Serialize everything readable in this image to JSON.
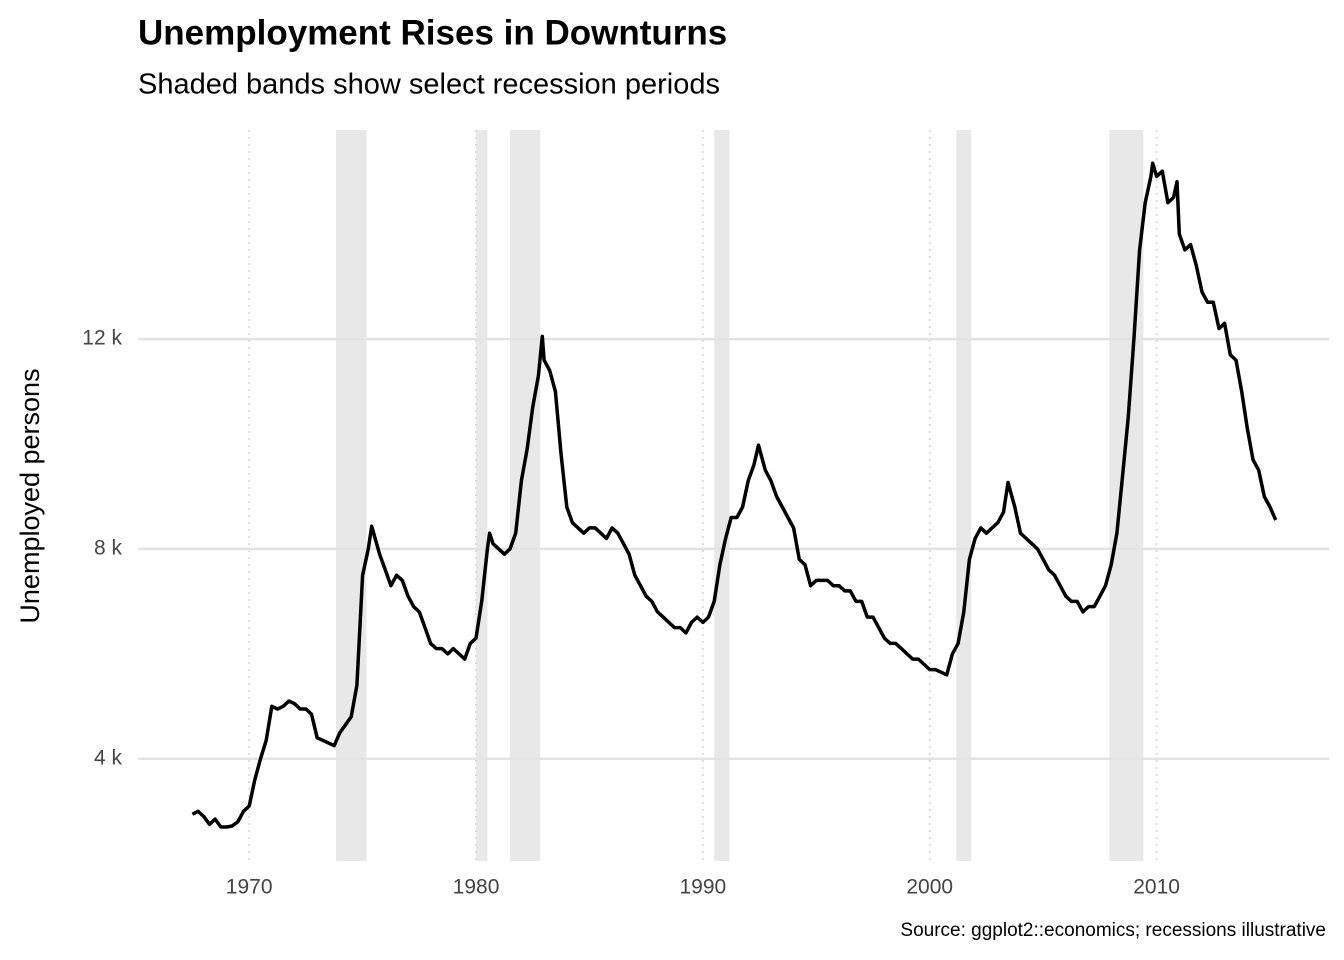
{
  "chart_data": {
    "type": "line",
    "title": "Unemployment Rises in Downturns",
    "subtitle": "Shaded bands show select recession periods",
    "y_label": "Unemployed persons",
    "caption": "Source: ggplot2::economics; recessions illustrative",
    "color": "#000000",
    "recession_color": "#e8e8e8",
    "recessions": [
      [
        1973.83,
        1975.17
      ],
      [
        1980.0,
        1980.5
      ],
      [
        1981.5,
        1982.83
      ],
      [
        1990.5,
        1991.17
      ],
      [
        2001.17,
        2001.83
      ],
      [
        2007.92,
        2009.42
      ]
    ],
    "x": [
      1967.5,
      1967.75,
      1968,
      1968.25,
      1968.5,
      1968.75,
      1969,
      1969.25,
      1969.5,
      1969.75,
      1970,
      1970.25,
      1970.5,
      1970.75,
      1971,
      1971.25,
      1971.5,
      1971.75,
      1972,
      1972.25,
      1972.5,
      1972.75,
      1973,
      1973.25,
      1973.5,
      1973.75,
      1974,
      1974.25,
      1974.5,
      1974.75,
      1975,
      1975.25,
      1975.4,
      1975.75,
      1976,
      1976.25,
      1976.5,
      1976.75,
      1977,
      1977.25,
      1977.5,
      1977.75,
      1978,
      1978.25,
      1978.5,
      1978.75,
      1979,
      1979.25,
      1979.5,
      1979.75,
      1980,
      1980.25,
      1980.5,
      1980.6,
      1980.75,
      1981,
      1981.25,
      1981.5,
      1981.75,
      1982,
      1982.25,
      1982.5,
      1982.75,
      1982.92,
      1983,
      1983.25,
      1983.5,
      1983.75,
      1984,
      1984.25,
      1984.5,
      1984.75,
      1985,
      1985.25,
      1985.5,
      1985.75,
      1986,
      1986.25,
      1986.5,
      1986.75,
      1987,
      1987.25,
      1987.5,
      1987.75,
      1988,
      1988.25,
      1988.5,
      1988.75,
      1989,
      1989.25,
      1989.5,
      1989.75,
      1990,
      1990.25,
      1990.5,
      1990.75,
      1991,
      1991.25,
      1991.5,
      1991.75,
      1992,
      1992.25,
      1992.45,
      1992.75,
      1993,
      1993.25,
      1993.5,
      1993.75,
      1994,
      1994.25,
      1994.5,
      1994.75,
      1995,
      1995.25,
      1995.5,
      1995.75,
      1996,
      1996.25,
      1996.5,
      1996.75,
      1997,
      1997.25,
      1997.5,
      1997.75,
      1998,
      1998.25,
      1998.5,
      1998.75,
      1999,
      1999.25,
      1999.5,
      1999.75,
      2000,
      2000.25,
      2000.5,
      2000.75,
      2001,
      2001.25,
      2001.5,
      2001.75,
      2002,
      2002.25,
      2002.5,
      2002.75,
      2003,
      2003.25,
      2003.45,
      2003.75,
      2004,
      2004.25,
      2004.5,
      2004.75,
      2005,
      2005.25,
      2005.5,
      2005.75,
      2006,
      2006.25,
      2006.5,
      2006.75,
      2007,
      2007.25,
      2007.5,
      2007.75,
      2008,
      2008.25,
      2008.5,
      2008.75,
      2009,
      2009.25,
      2009.5,
      2009.75,
      2009.83,
      2010,
      2010.25,
      2010.5,
      2010.75,
      2010.9,
      2011,
      2011.25,
      2011.5,
      2011.75,
      2012,
      2012.25,
      2012.5,
      2012.75,
      2013,
      2013.25,
      2013.5,
      2013.75,
      2014,
      2014.25,
      2014.5,
      2014.75,
      2015,
      2015.25
    ],
    "values": [
      2944,
      3000,
      2900,
      2750,
      2850,
      2700,
      2700,
      2720,
      2800,
      3000,
      3100,
      3600,
      4000,
      4350,
      5000,
      4950,
      5000,
      5100,
      5050,
      4950,
      4950,
      4850,
      4400,
      4350,
      4300,
      4250,
      4500,
      4650,
      4800,
      5400,
      7500,
      8000,
      8433,
      7900,
      7600,
      7300,
      7500,
      7400,
      7100,
      6900,
      6800,
      6500,
      6200,
      6100,
      6100,
      6000,
      6100,
      6000,
      5900,
      6200,
      6300,
      7000,
      8000,
      8300,
      8100,
      8000,
      7900,
      8000,
      8300,
      9300,
      9900,
      10700,
      11300,
      12051,
      11600,
      11400,
      11000,
      9800,
      8800,
      8500,
      8400,
      8300,
      8400,
      8400,
      8300,
      8200,
      8400,
      8300,
      8100,
      7900,
      7500,
      7300,
      7100,
      7000,
      6800,
      6700,
      6600,
      6500,
      6500,
      6400,
      6600,
      6700,
      6600,
      6700,
      7000,
      7700,
      8200,
      8600,
      8600,
      8800,
      9300,
      9600,
      9977,
      9500,
      9300,
      9000,
      8800,
      8600,
      8400,
      7800,
      7700,
      7300,
      7400,
      7400,
      7400,
      7300,
      7300,
      7200,
      7200,
      7000,
      7000,
      6700,
      6700,
      6500,
      6300,
      6200,
      6200,
      6100,
      6000,
      5900,
      5900,
      5800,
      5700,
      5700,
      5650,
      5600,
      6000,
      6200,
      6800,
      7800,
      8200,
      8400,
      8300,
      8400,
      8500,
      8700,
      9266,
      8800,
      8300,
      8200,
      8100,
      8000,
      7800,
      7600,
      7500,
      7300,
      7100,
      7000,
      7000,
      6800,
      6900,
      6900,
      7100,
      7300,
      7700,
      8300,
      9400,
      10500,
      12000,
      13700,
      14600,
      15100,
      15352,
      15100,
      15200,
      14600,
      14700,
      15000,
      14000,
      13700,
      13800,
      13400,
      12900,
      12700,
      12700,
      12200,
      12300,
      11700,
      11600,
      11000,
      10300,
      9700,
      9500,
      9000,
      8800,
      8549
    ],
    "xlim": [
      1965.1,
      2017.6
    ],
    "ylim": [
      2052,
      15985
    ],
    "xticks": [
      1970,
      1980,
      1990,
      2000,
      2010
    ],
    "yticks": [
      {
        "value": 4000,
        "label": "4 k"
      },
      {
        "value": 8000,
        "label": "8 k"
      },
      {
        "value": 12000,
        "label": "12 k"
      }
    ],
    "grid": true
  }
}
